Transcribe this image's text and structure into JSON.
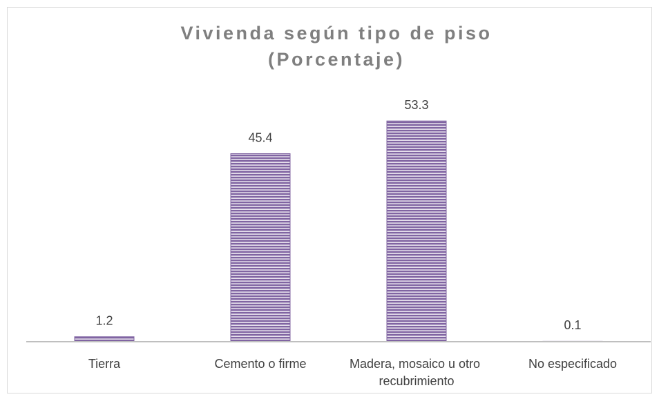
{
  "chart_data": {
    "type": "bar",
    "title": "Vivienda según tipo de piso",
    "subtitle": "(Porcentaje)",
    "categories": [
      "Tierra",
      "Cemento o firme",
      "Madera, mosaico u otro recubrimiento",
      "No especificado"
    ],
    "values": [
      1.2,
      45.4,
      53.3,
      0.1
    ],
    "color": "#8064a2",
    "ylim": [
      0,
      60
    ],
    "grid": false
  }
}
